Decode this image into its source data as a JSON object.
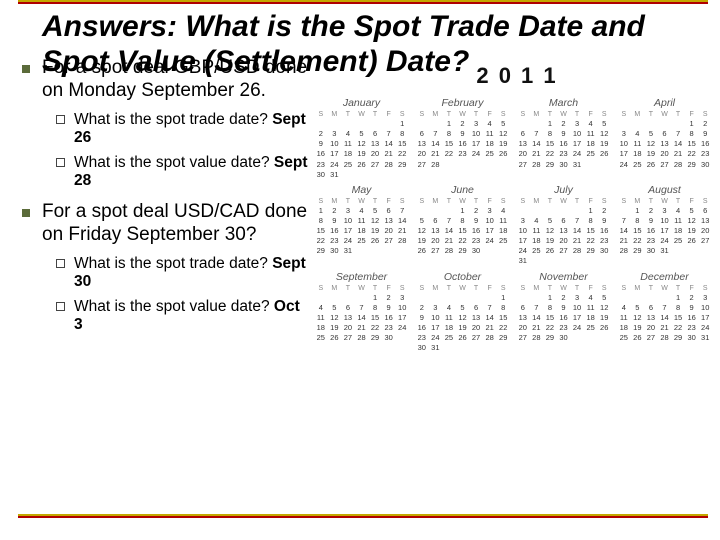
{
  "title": "Answers: What is the Spot Trade Date and Spot Value (Settlement) Date?",
  "bullets": [
    {
      "text": "For a spot deal GBP/USD done on Monday September 26.",
      "subs": [
        {
          "q": "What is the spot trade date?",
          "a": "Sept 26"
        },
        {
          "q": "What is the spot value date?",
          "a": "Sept 28"
        }
      ]
    },
    {
      "text": "For a spot deal USD/CAD done on Friday September 30?",
      "subs": [
        {
          "q": "What is the spot trade date?",
          "a": "Sept 30"
        },
        {
          "q": "What is the spot value date?",
          "a": "Oct 3"
        }
      ]
    }
  ],
  "calendar": {
    "year": "2 0 1 1",
    "dow": [
      "S",
      "M",
      "T",
      "W",
      "T",
      "F",
      "S"
    ],
    "months": [
      {
        "name": "January",
        "start": 6,
        "len": 31
      },
      {
        "name": "February",
        "start": 2,
        "len": 28
      },
      {
        "name": "March",
        "start": 2,
        "len": 31
      },
      {
        "name": "April",
        "start": 5,
        "len": 30
      },
      {
        "name": "May",
        "start": 0,
        "len": 31
      },
      {
        "name": "June",
        "start": 3,
        "len": 30
      },
      {
        "name": "July",
        "start": 5,
        "len": 31
      },
      {
        "name": "August",
        "start": 1,
        "len": 31
      },
      {
        "name": "September",
        "start": 4,
        "len": 30
      },
      {
        "name": "October",
        "start": 6,
        "len": 31
      },
      {
        "name": "November",
        "start": 2,
        "len": 30
      },
      {
        "name": "December",
        "start": 4,
        "len": 31
      }
    ]
  },
  "colors": {
    "border_yellow": "#c4a800",
    "border_red": "#b00000",
    "bullet_fill": "#5b6b3a"
  }
}
